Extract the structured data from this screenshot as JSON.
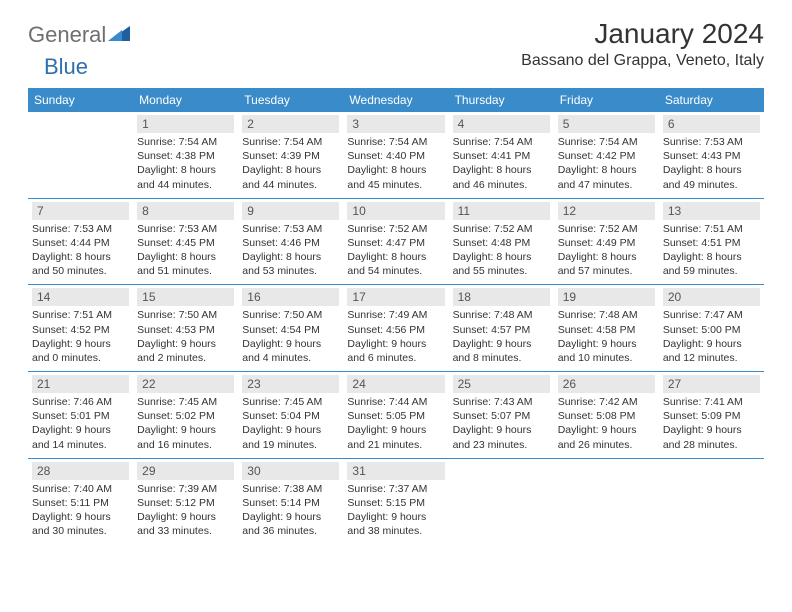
{
  "brand": {
    "part1": "General",
    "part2": "Blue"
  },
  "title": "January 2024",
  "location": "Bassano del Grappa, Veneto, Italy",
  "colors": {
    "header_bg": "#3a8bc9",
    "header_text": "#ffffff",
    "daynum_bg": "#e8e8e8",
    "daynum_text": "#555555",
    "rule": "#3a8bc9",
    "body_text": "#333333",
    "logo_gray": "#6f6f6f",
    "logo_blue": "#2f6fb0"
  },
  "weekdays": [
    "Sunday",
    "Monday",
    "Tuesday",
    "Wednesday",
    "Thursday",
    "Friday",
    "Saturday"
  ],
  "weeks": [
    [
      null,
      {
        "n": "1",
        "sr": "Sunrise: 7:54 AM",
        "ss": "Sunset: 4:38 PM",
        "d1": "Daylight: 8 hours",
        "d2": "and 44 minutes."
      },
      {
        "n": "2",
        "sr": "Sunrise: 7:54 AM",
        "ss": "Sunset: 4:39 PM",
        "d1": "Daylight: 8 hours",
        "d2": "and 44 minutes."
      },
      {
        "n": "3",
        "sr": "Sunrise: 7:54 AM",
        "ss": "Sunset: 4:40 PM",
        "d1": "Daylight: 8 hours",
        "d2": "and 45 minutes."
      },
      {
        "n": "4",
        "sr": "Sunrise: 7:54 AM",
        "ss": "Sunset: 4:41 PM",
        "d1": "Daylight: 8 hours",
        "d2": "and 46 minutes."
      },
      {
        "n": "5",
        "sr": "Sunrise: 7:54 AM",
        "ss": "Sunset: 4:42 PM",
        "d1": "Daylight: 8 hours",
        "d2": "and 47 minutes."
      },
      {
        "n": "6",
        "sr": "Sunrise: 7:53 AM",
        "ss": "Sunset: 4:43 PM",
        "d1": "Daylight: 8 hours",
        "d2": "and 49 minutes."
      }
    ],
    [
      {
        "n": "7",
        "sr": "Sunrise: 7:53 AM",
        "ss": "Sunset: 4:44 PM",
        "d1": "Daylight: 8 hours",
        "d2": "and 50 minutes."
      },
      {
        "n": "8",
        "sr": "Sunrise: 7:53 AM",
        "ss": "Sunset: 4:45 PM",
        "d1": "Daylight: 8 hours",
        "d2": "and 51 minutes."
      },
      {
        "n": "9",
        "sr": "Sunrise: 7:53 AM",
        "ss": "Sunset: 4:46 PM",
        "d1": "Daylight: 8 hours",
        "d2": "and 53 minutes."
      },
      {
        "n": "10",
        "sr": "Sunrise: 7:52 AM",
        "ss": "Sunset: 4:47 PM",
        "d1": "Daylight: 8 hours",
        "d2": "and 54 minutes."
      },
      {
        "n": "11",
        "sr": "Sunrise: 7:52 AM",
        "ss": "Sunset: 4:48 PM",
        "d1": "Daylight: 8 hours",
        "d2": "and 55 minutes."
      },
      {
        "n": "12",
        "sr": "Sunrise: 7:52 AM",
        "ss": "Sunset: 4:49 PM",
        "d1": "Daylight: 8 hours",
        "d2": "and 57 minutes."
      },
      {
        "n": "13",
        "sr": "Sunrise: 7:51 AM",
        "ss": "Sunset: 4:51 PM",
        "d1": "Daylight: 8 hours",
        "d2": "and 59 minutes."
      }
    ],
    [
      {
        "n": "14",
        "sr": "Sunrise: 7:51 AM",
        "ss": "Sunset: 4:52 PM",
        "d1": "Daylight: 9 hours",
        "d2": "and 0 minutes."
      },
      {
        "n": "15",
        "sr": "Sunrise: 7:50 AM",
        "ss": "Sunset: 4:53 PM",
        "d1": "Daylight: 9 hours",
        "d2": "and 2 minutes."
      },
      {
        "n": "16",
        "sr": "Sunrise: 7:50 AM",
        "ss": "Sunset: 4:54 PM",
        "d1": "Daylight: 9 hours",
        "d2": "and 4 minutes."
      },
      {
        "n": "17",
        "sr": "Sunrise: 7:49 AM",
        "ss": "Sunset: 4:56 PM",
        "d1": "Daylight: 9 hours",
        "d2": "and 6 minutes."
      },
      {
        "n": "18",
        "sr": "Sunrise: 7:48 AM",
        "ss": "Sunset: 4:57 PM",
        "d1": "Daylight: 9 hours",
        "d2": "and 8 minutes."
      },
      {
        "n": "19",
        "sr": "Sunrise: 7:48 AM",
        "ss": "Sunset: 4:58 PM",
        "d1": "Daylight: 9 hours",
        "d2": "and 10 minutes."
      },
      {
        "n": "20",
        "sr": "Sunrise: 7:47 AM",
        "ss": "Sunset: 5:00 PM",
        "d1": "Daylight: 9 hours",
        "d2": "and 12 minutes."
      }
    ],
    [
      {
        "n": "21",
        "sr": "Sunrise: 7:46 AM",
        "ss": "Sunset: 5:01 PM",
        "d1": "Daylight: 9 hours",
        "d2": "and 14 minutes."
      },
      {
        "n": "22",
        "sr": "Sunrise: 7:45 AM",
        "ss": "Sunset: 5:02 PM",
        "d1": "Daylight: 9 hours",
        "d2": "and 16 minutes."
      },
      {
        "n": "23",
        "sr": "Sunrise: 7:45 AM",
        "ss": "Sunset: 5:04 PM",
        "d1": "Daylight: 9 hours",
        "d2": "and 19 minutes."
      },
      {
        "n": "24",
        "sr": "Sunrise: 7:44 AM",
        "ss": "Sunset: 5:05 PM",
        "d1": "Daylight: 9 hours",
        "d2": "and 21 minutes."
      },
      {
        "n": "25",
        "sr": "Sunrise: 7:43 AM",
        "ss": "Sunset: 5:07 PM",
        "d1": "Daylight: 9 hours",
        "d2": "and 23 minutes."
      },
      {
        "n": "26",
        "sr": "Sunrise: 7:42 AM",
        "ss": "Sunset: 5:08 PM",
        "d1": "Daylight: 9 hours",
        "d2": "and 26 minutes."
      },
      {
        "n": "27",
        "sr": "Sunrise: 7:41 AM",
        "ss": "Sunset: 5:09 PM",
        "d1": "Daylight: 9 hours",
        "d2": "and 28 minutes."
      }
    ],
    [
      {
        "n": "28",
        "sr": "Sunrise: 7:40 AM",
        "ss": "Sunset: 5:11 PM",
        "d1": "Daylight: 9 hours",
        "d2": "and 30 minutes."
      },
      {
        "n": "29",
        "sr": "Sunrise: 7:39 AM",
        "ss": "Sunset: 5:12 PM",
        "d1": "Daylight: 9 hours",
        "d2": "and 33 minutes."
      },
      {
        "n": "30",
        "sr": "Sunrise: 7:38 AM",
        "ss": "Sunset: 5:14 PM",
        "d1": "Daylight: 9 hours",
        "d2": "and 36 minutes."
      },
      {
        "n": "31",
        "sr": "Sunrise: 7:37 AM",
        "ss": "Sunset: 5:15 PM",
        "d1": "Daylight: 9 hours",
        "d2": "and 38 minutes."
      },
      null,
      null,
      null
    ]
  ]
}
